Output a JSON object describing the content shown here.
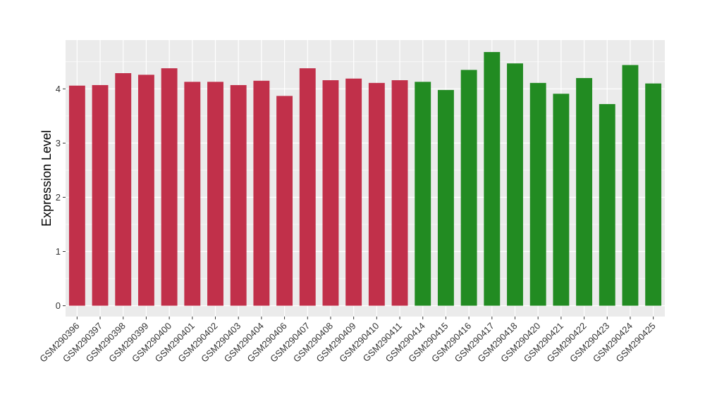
{
  "chart_data": {
    "type": "bar",
    "title": "",
    "xlabel": "",
    "ylabel": "Expression Level",
    "ylim": [
      -0.2,
      4.9
    ],
    "yticks": [
      0,
      1,
      2,
      3,
      4
    ],
    "grid": true,
    "colors": {
      "panel_bg": "#ebebeb",
      "grid": "#ffffff",
      "group_1": "#c1304a",
      "group_2": "#228b22"
    },
    "categories": [
      "GSM290396",
      "GSM290397",
      "GSM290398",
      "GSM290399",
      "GSM290400",
      "GSM290401",
      "GSM290402",
      "GSM290403",
      "GSM290404",
      "GSM290406",
      "GSM290407",
      "GSM290408",
      "GSM290409",
      "GSM290410",
      "GSM290411",
      "GSM290414",
      "GSM290415",
      "GSM290416",
      "GSM290417",
      "GSM290418",
      "GSM290420",
      "GSM290421",
      "GSM290422",
      "GSM290423",
      "GSM290424",
      "GSM290425"
    ],
    "values": [
      4.06,
      4.07,
      4.29,
      4.26,
      4.38,
      4.13,
      4.13,
      4.07,
      4.15,
      3.87,
      4.38,
      4.16,
      4.19,
      4.11,
      4.16,
      4.13,
      3.98,
      4.35,
      4.68,
      4.47,
      4.11,
      3.91,
      4.2,
      3.72,
      4.44,
      4.1
    ],
    "groups": [
      1,
      1,
      1,
      1,
      1,
      1,
      1,
      1,
      1,
      1,
      1,
      1,
      1,
      1,
      1,
      2,
      2,
      2,
      2,
      2,
      2,
      2,
      2,
      2,
      2,
      2
    ]
  }
}
